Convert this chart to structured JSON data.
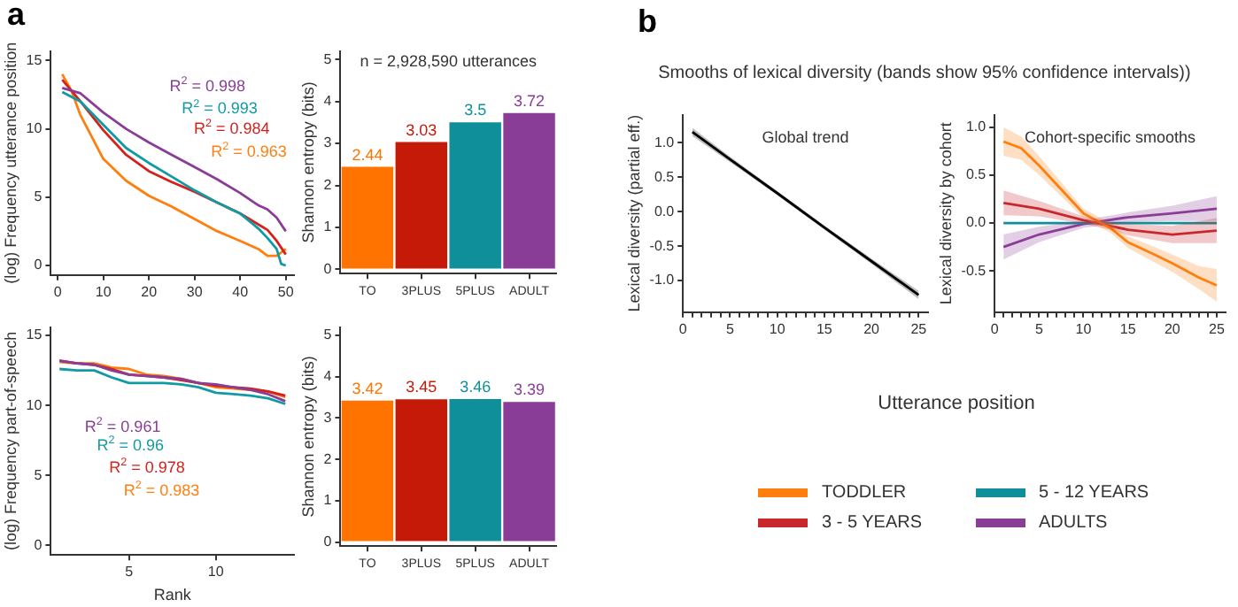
{
  "chart_data": [
    {
      "type": "line",
      "ylabel": "(log) Frequency utterance position",
      "xlim": [
        -1.5,
        51.8
      ],
      "xticks": [
        0,
        10,
        20,
        30,
        40,
        50
      ],
      "ylim": [
        -0.7,
        15.7
      ],
      "yticks": [
        0,
        5,
        10,
        15
      ],
      "grid": false,
      "marker": "none",
      "line_style": "solid",
      "annotations": [
        "a",
        "R$^{2}$ = 0.998",
        "R$^{2}$ = 0.993",
        "R$^{2}$ = 0.984",
        "R$^{2}$ = 0.963"
      ],
      "series": [
        {
          "color": "#8a3d97",
          "x": [
            1,
            5,
            10,
            15,
            20,
            25,
            30,
            35,
            40,
            44,
            46,
            48,
            50
          ],
          "values": [
            13.0,
            12.6,
            11.2,
            10.0,
            9.0,
            8.1,
            7.2,
            6.3,
            5.3,
            4.4,
            4.1,
            3.5,
            2.5
          ]
        },
        {
          "color": "#119aa3",
          "x": [
            1,
            5,
            10,
            15,
            20,
            25,
            30,
            35,
            40,
            44,
            46,
            48,
            49,
            50
          ],
          "values": [
            12.7,
            12.0,
            10.3,
            8.6,
            7.5,
            6.5,
            5.5,
            4.6,
            3.8,
            2.7,
            2.0,
            1.2,
            0.1,
            0
          ]
        },
        {
          "color": "#d4211c",
          "x": [
            1,
            5,
            10,
            15,
            20,
            25,
            30,
            35,
            40,
            44,
            46,
            48,
            50
          ],
          "values": [
            13.6,
            12.0,
            9.9,
            8.1,
            6.9,
            6.1,
            5.4,
            4.6,
            3.8,
            3.0,
            2.6,
            1.8,
            0.8
          ]
        },
        {
          "color": "#ff7f0e",
          "x": [
            1,
            3,
            5,
            10,
            15,
            20,
            25,
            30,
            35,
            40,
            44,
            46,
            48,
            50
          ],
          "values": [
            14.0,
            12.8,
            11.0,
            7.8,
            6.2,
            5.1,
            4.3,
            3.4,
            2.5,
            1.8,
            1.2,
            0.7,
            0.7,
            1.2
          ]
        }
      ]
    },
    {
      "type": "bar",
      "ylabel": "Shannon entropy (bits)",
      "categories": [
        "TO",
        "3PLUS",
        "5PLUS",
        "ADULT"
      ],
      "values": [
        2.44,
        3.03,
        3.5,
        3.72
      ],
      "colors": [
        "#ff7400",
        "#c61a09",
        "#0e8f99",
        "#8a3d97"
      ],
      "ylim": [
        -0.1,
        5.2
      ],
      "yticks": [
        0,
        1,
        2,
        3,
        4,
        5
      ],
      "grid": false,
      "data_labels": true,
      "annotations": [
        "n = 2,928,590 utterances"
      ]
    },
    {
      "type": "line",
      "xlabel": "Rank",
      "ylabel": "(log) Frequency part-of-speech",
      "xlim": [
        0.5,
        14.5
      ],
      "xticks": [
        5,
        10
      ],
      "ylim": [
        -0.7,
        15.6
      ],
      "yticks": [
        0,
        5,
        10,
        15
      ],
      "grid": false,
      "marker": "none",
      "line_style": "solid",
      "annotations": [
        "R$^{2}$ = 0.961",
        "R$^{2}$ = 0.96",
        "R$^{2}$ = 0.978",
        "R$^{2}$ = 0.983"
      ],
      "series": [
        {
          "color": "#8a3d97",
          "x": [
            1,
            2,
            3,
            4,
            5,
            6,
            7,
            8,
            9,
            10,
            11,
            12,
            13,
            14
          ],
          "values": [
            13.2,
            13.0,
            12.9,
            12.5,
            12.2,
            12.1,
            12.0,
            11.9,
            11.6,
            11.5,
            11.3,
            11.1,
            10.8,
            10.3
          ]
        },
        {
          "color": "#119aa3",
          "x": [
            1,
            2,
            3,
            4,
            5,
            6,
            7,
            8,
            9,
            10,
            11,
            12,
            13,
            14
          ],
          "values": [
            12.6,
            12.5,
            12.5,
            12.0,
            11.6,
            11.6,
            11.6,
            11.5,
            11.3,
            10.9,
            10.8,
            10.7,
            10.5,
            10.1
          ]
        },
        {
          "color": "#d4211c",
          "x": [
            1,
            2,
            3,
            4,
            5,
            6,
            7,
            8,
            9,
            10,
            11,
            12,
            13,
            14
          ],
          "values": [
            13.2,
            13.0,
            12.9,
            12.6,
            12.2,
            12.1,
            12.0,
            11.8,
            11.6,
            11.4,
            11.3,
            11.2,
            11.0,
            10.7
          ]
        },
        {
          "color": "#ff7f0e",
          "x": [
            1,
            2,
            3,
            4,
            5,
            6,
            7,
            8,
            9,
            10,
            11,
            12,
            13,
            14
          ],
          "values": [
            13.1,
            13.0,
            13.0,
            12.7,
            12.6,
            12.2,
            12.1,
            11.9,
            11.6,
            11.3,
            11.2,
            11.1,
            11.0,
            10.6
          ]
        }
      ]
    },
    {
      "type": "bar",
      "ylabel": "Shannon entropy (bits)",
      "categories": [
        "TO",
        "3PLUS",
        "5PLUS",
        "ADULT"
      ],
      "values": [
        3.42,
        3.45,
        3.46,
        3.39
      ],
      "colors": [
        "#ff7400",
        "#c61a09",
        "#0e8f99",
        "#8a3d97"
      ],
      "ylim": [
        -0.1,
        5.2
      ],
      "yticks": [
        0,
        1,
        2,
        3,
        4,
        5
      ],
      "grid": false,
      "data_labels": true
    },
    {
      "type": "line",
      "title": "Smooths of lexical diversity (bands show 95% confidence intervals))",
      "ylabel": "Lexical diversity (partial eff.)",
      "xlim": [
        0,
        26
      ],
      "xticks": [
        0,
        {
          "value": 1,
          "label": null
        },
        {
          "value": 2,
          "label": null
        },
        {
          "value": 3,
          "label": null
        },
        {
          "value": 4,
          "label": null
        },
        5,
        {
          "value": 6,
          "label": null
        },
        {
          "value": 7,
          "label": null
        },
        {
          "value": 8,
          "label": null
        },
        {
          "value": 9,
          "label": null
        },
        10,
        {
          "value": 11,
          "label": null
        },
        {
          "value": 12,
          "label": null
        },
        {
          "value": 13,
          "label": null
        },
        {
          "value": 14,
          "label": null
        },
        15,
        {
          "value": 16,
          "label": null
        },
        {
          "value": 17,
          "label": null
        },
        {
          "value": 18,
          "label": null
        },
        {
          "value": 19,
          "label": null
        },
        20,
        {
          "value": 21,
          "label": null
        },
        {
          "value": 22,
          "label": null
        },
        {
          "value": 23,
          "label": null
        },
        {
          "value": 24,
          "label": null
        },
        25
      ],
      "ylim": [
        -1.46,
        1.41
      ],
      "yticks": [
        {
          "value": 1,
          "label": "1.0"
        },
        0.5,
        {
          "value": 0,
          "label": "0.0"
        },
        -0.5,
        {
          "value": -1,
          "label": "-1.0"
        }
      ],
      "grid": false,
      "marker": "none",
      "line_style": "solid",
      "annotations": [
        "b",
        "Global trend"
      ],
      "series": [
        {
          "color": "#000000",
          "x": [
            1,
            5,
            10,
            15,
            20,
            25
          ],
          "values": [
            1.16,
            0.76,
            0.27,
            -0.23,
            -0.72,
            -1.21
          ],
          "lower": [
            1.1,
            0.72,
            0.24,
            -0.26,
            -0.76,
            -1.27
          ],
          "upper": [
            1.22,
            0.8,
            0.3,
            -0.2,
            -0.68,
            -1.15
          ]
        }
      ]
    },
    {
      "type": "line",
      "xlabel": "Utterance position",
      "ylabel": "Lexical diversity by cohort",
      "xlim": [
        0,
        26
      ],
      "xticks": [
        0,
        {
          "value": 1,
          "label": null
        },
        {
          "value": 2,
          "label": null
        },
        {
          "value": 3,
          "label": null
        },
        {
          "value": 4,
          "label": null
        },
        5,
        {
          "value": 6,
          "label": null
        },
        {
          "value": 7,
          "label": null
        },
        {
          "value": 8,
          "label": null
        },
        {
          "value": 9,
          "label": null
        },
        10,
        {
          "value": 11,
          "label": null
        },
        {
          "value": 12,
          "label": null
        },
        {
          "value": 13,
          "label": null
        },
        {
          "value": 14,
          "label": null
        },
        15,
        {
          "value": 16,
          "label": null
        },
        {
          "value": 17,
          "label": null
        },
        {
          "value": 18,
          "label": null
        },
        {
          "value": 19,
          "label": null
        },
        20,
        {
          "value": 21,
          "label": null
        },
        {
          "value": 22,
          "label": null
        },
        {
          "value": 23,
          "label": null
        },
        {
          "value": 24,
          "label": null
        },
        25
      ],
      "ylim": [
        -0.93,
        1.13
      ],
      "yticks": [
        {
          "value": 1,
          "label": "1.0"
        },
        0.5,
        {
          "value": 0,
          "label": "0.0"
        },
        -0.5
      ],
      "grid": false,
      "marker": "none",
      "line_style": "solid",
      "legend": "bottom",
      "annotations": [
        "Cohort-specific smooths"
      ],
      "series": [
        {
          "name": "TODDLER",
          "color": "#ff7f0e",
          "x": [
            1,
            3,
            5,
            8,
            10,
            13,
            15,
            18,
            20,
            23,
            25
          ],
          "values": [
            0.85,
            0.78,
            0.6,
            0.3,
            0.1,
            -0.05,
            -0.2,
            -0.33,
            -0.42,
            -0.57,
            -0.65
          ],
          "lower": [
            0.7,
            0.66,
            0.5,
            0.23,
            0.05,
            -0.1,
            -0.26,
            -0.41,
            -0.51,
            -0.69,
            -0.82
          ],
          "upper": [
            1.0,
            0.9,
            0.7,
            0.37,
            0.15,
            0.0,
            -0.14,
            -0.25,
            -0.33,
            -0.45,
            -0.48
          ]
        },
        {
          "name": "3 - 5 YEARS",
          "color": "#c8282c",
          "x": [
            1,
            5,
            10,
            13,
            15,
            20,
            25
          ],
          "values": [
            0.21,
            0.15,
            0.03,
            -0.03,
            -0.07,
            -0.12,
            -0.08
          ],
          "lower": [
            0.08,
            0.07,
            -0.01,
            -0.07,
            -0.13,
            -0.21,
            -0.21
          ],
          "upper": [
            0.34,
            0.23,
            0.07,
            0.01,
            -0.01,
            -0.03,
            0.05
          ]
        },
        {
          "name": "5 - 12 YEARS",
          "color": "#0e8f99",
          "x": [
            1,
            25
          ],
          "values": [
            0,
            0
          ]
        },
        {
          "name": "ADULTS",
          "color": "#8a3d97",
          "x": [
            1,
            5,
            10,
            15,
            20,
            25
          ],
          "values": [
            -0.25,
            -0.12,
            -0.01,
            0.06,
            0.1,
            0.15
          ],
          "lower": [
            -0.38,
            -0.2,
            -0.05,
            0.01,
            0.02,
            0.02
          ],
          "upper": [
            -0.12,
            -0.04,
            0.03,
            0.11,
            0.18,
            0.28
          ]
        }
      ]
    }
  ]
}
